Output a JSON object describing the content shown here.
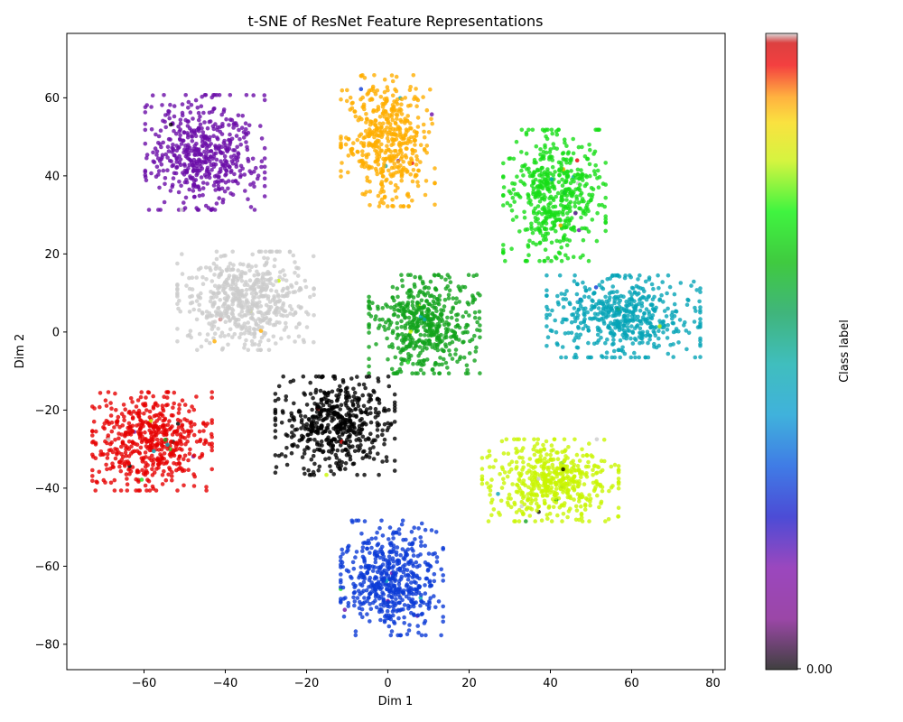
{
  "chart_data": {
    "type": "scatter",
    "title": "t-SNE of ResNet Feature Representations",
    "xlabel": "Dim 1",
    "ylabel": "Dim 2",
    "xlim": [
      -79,
      83
    ],
    "ylim": [
      -86.5,
      76.5
    ],
    "xticks": [
      -60,
      -40,
      -20,
      0,
      20,
      40,
      60,
      80
    ],
    "yticks": [
      -80,
      -60,
      -40,
      -20,
      0,
      20,
      40,
      60
    ],
    "grid": false,
    "colorbar": {
      "label": "Class label",
      "tick_labels": [
        "0.00"
      ],
      "colormap": "nipy_spectral"
    },
    "clusters": [
      {
        "color": "#6a0ca8",
        "center": [
          -45,
          46
        ],
        "spread": [
          7,
          7
        ],
        "count": 520
      },
      {
        "color": "#ffae00",
        "center": [
          0,
          49
        ],
        "spread": [
          5.5,
          8
        ],
        "count": 480
      },
      {
        "color": "#16dd16",
        "center": [
          41,
          35
        ],
        "spread": [
          6,
          8
        ],
        "count": 520
      },
      {
        "color": "#cccccc",
        "center": [
          -35,
          8
        ],
        "spread": [
          8,
          6
        ],
        "count": 560
      },
      {
        "color": "#11a31c",
        "center": [
          9,
          2
        ],
        "spread": [
          6.5,
          6
        ],
        "count": 520
      },
      {
        "color": "#05a4b7",
        "center": [
          58,
          4
        ],
        "spread": [
          9,
          5
        ],
        "count": 520
      },
      {
        "color": "#e60000",
        "center": [
          -58,
          -28
        ],
        "spread": [
          7,
          6
        ],
        "count": 520
      },
      {
        "color": "#000000",
        "center": [
          -13,
          -24
        ],
        "spread": [
          7,
          6
        ],
        "count": 520
      },
      {
        "color": "#c9f503",
        "center": [
          40,
          -38
        ],
        "spread": [
          8,
          5
        ],
        "count": 520
      },
      {
        "color": "#0a3ad6",
        "center": [
          1,
          -63
        ],
        "spread": [
          6,
          7
        ],
        "count": 520
      }
    ]
  }
}
